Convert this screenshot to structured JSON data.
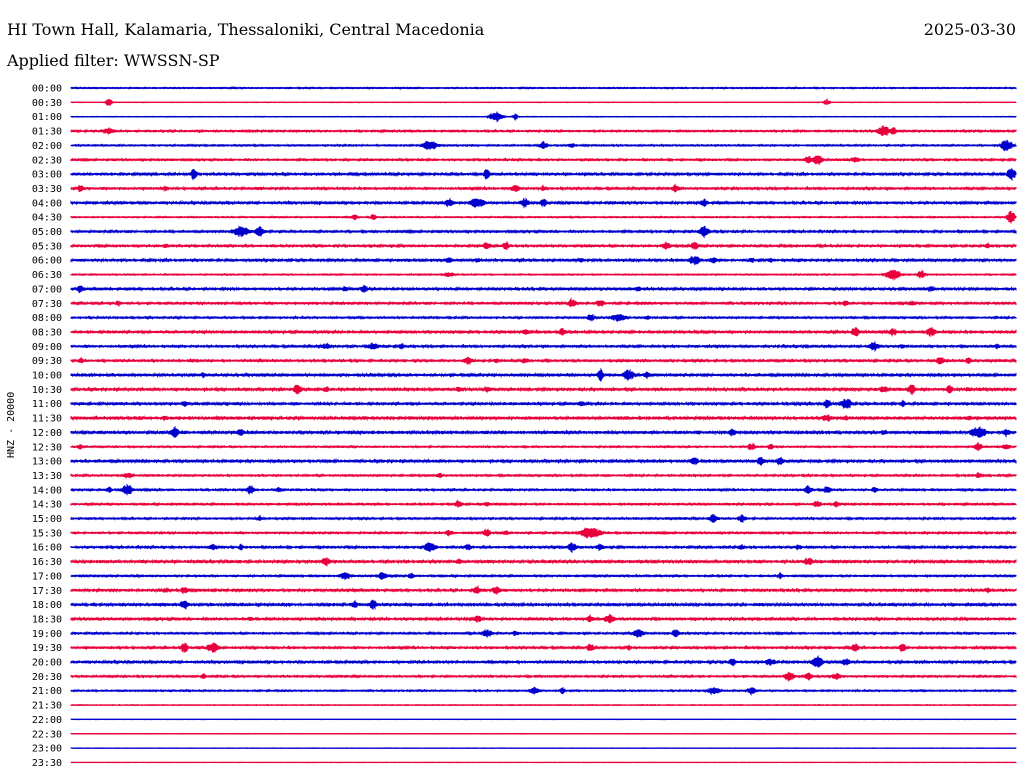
{
  "header": {
    "station": "HI Town Hall, Kalamaria, Thessaloniki, Central Macedonia",
    "date": "2025-03-30",
    "filter": "Applied filter: WWSSN-SP"
  },
  "chart_data": {
    "type": "line",
    "ylabel": "HNZ - 20000",
    "colors": [
      "#0000cc",
      "#e8003c"
    ],
    "row_labels": [
      "00:00",
      "00:30",
      "01:00",
      "01:30",
      "02:00",
      "02:30",
      "03:00",
      "03:30",
      "04:00",
      "04:30",
      "05:00",
      "05:30",
      "06:00",
      "06:30",
      "07:00",
      "07:30",
      "08:00",
      "08:30",
      "09:00",
      "09:30",
      "10:00",
      "10:30",
      "11:00",
      "11:30",
      "12:00",
      "12:30",
      "13:00",
      "13:30",
      "14:00",
      "14:30",
      "15:00",
      "15:30",
      "16:00",
      "16:30",
      "17:00",
      "17:30",
      "18:00",
      "18:30",
      "19:00",
      "19:30",
      "20:00",
      "20:30",
      "21:00",
      "21:30",
      "22:00",
      "22:30",
      "23:00",
      "23:30"
    ],
    "noise": [
      0.5,
      0.2,
      0.25,
      0.7,
      0.6,
      0.7,
      0.9,
      0.8,
      0.9,
      0.5,
      0.8,
      0.8,
      0.9,
      0.5,
      0.9,
      0.8,
      0.7,
      0.9,
      0.8,
      0.8,
      1.0,
      1.0,
      0.9,
      1.1,
      1.1,
      0.6,
      1.0,
      0.7,
      0.7,
      0.7,
      0.7,
      0.7,
      0.8,
      1.0,
      0.7,
      0.9,
      1.0,
      0.9,
      0.7,
      0.8,
      0.9,
      0.7,
      0.6,
      0.3,
      0.15,
      0.2,
      0.15,
      0.15
    ],
    "events": [
      [],
      [
        [
          0.04,
          4,
          3
        ],
        [
          0.8,
          3,
          3
        ]
      ],
      [
        [
          0.45,
          6,
          6
        ],
        [
          0.47,
          3,
          3
        ]
      ],
      [
        [
          0.04,
          3,
          6
        ],
        [
          0.86,
          6,
          6
        ],
        [
          0.87,
          4,
          4
        ]
      ],
      [
        [
          0.38,
          5,
          8
        ],
        [
          0.5,
          4,
          4
        ],
        [
          0.53,
          3,
          3
        ],
        [
          0.99,
          6,
          6
        ]
      ],
      [
        [
          0.78,
          4,
          4
        ],
        [
          0.79,
          6,
          5
        ],
        [
          0.83,
          4,
          4
        ]
      ],
      [
        [
          0.13,
          7,
          3
        ],
        [
          0.44,
          7,
          3
        ],
        [
          0.995,
          7,
          4
        ]
      ],
      [
        [
          0.01,
          4,
          4
        ],
        [
          0.1,
          3,
          3
        ],
        [
          0.47,
          4,
          5
        ],
        [
          0.5,
          3,
          3
        ],
        [
          0.64,
          4,
          4
        ]
      ],
      [
        [
          0.4,
          4,
          5
        ],
        [
          0.43,
          5,
          8
        ],
        [
          0.48,
          5,
          5
        ],
        [
          0.5,
          4,
          4
        ],
        [
          0.67,
          4,
          4
        ]
      ],
      [
        [
          0.3,
          3,
          3
        ],
        [
          0.32,
          3,
          3
        ],
        [
          0.995,
          7,
          4
        ]
      ],
      [
        [
          0.18,
          6,
          8
        ],
        [
          0.2,
          5,
          5
        ],
        [
          0.67,
          6,
          5
        ]
      ],
      [
        [
          0.1,
          3,
          3
        ],
        [
          0.44,
          4,
          4
        ],
        [
          0.46,
          5,
          3
        ],
        [
          0.63,
          4,
          5
        ],
        [
          0.66,
          4,
          4
        ],
        [
          0.97,
          3,
          3
        ]
      ],
      [
        [
          0.4,
          4,
          3
        ],
        [
          0.43,
          3,
          3
        ],
        [
          0.54,
          3,
          3
        ],
        [
          0.66,
          5,
          6
        ],
        [
          0.68,
          4,
          4
        ],
        [
          0.72,
          3,
          3
        ],
        [
          0.74,
          3,
          3
        ]
      ],
      [
        [
          0.4,
          3,
          5
        ],
        [
          0.87,
          5,
          8
        ],
        [
          0.9,
          4,
          4
        ]
      ],
      [
        [
          0.01,
          4,
          4
        ],
        [
          0.29,
          3,
          3
        ],
        [
          0.31,
          4,
          4
        ],
        [
          0.6,
          3,
          3
        ],
        [
          0.91,
          3,
          4
        ]
      ],
      [
        [
          0.05,
          3,
          3
        ],
        [
          0.53,
          5,
          4
        ],
        [
          0.56,
          4,
          4
        ],
        [
          0.82,
          3,
          3
        ],
        [
          0.89,
          3,
          3
        ]
      ],
      [
        [
          0.55,
          4,
          4
        ],
        [
          0.58,
          4,
          8
        ],
        [
          0.61,
          3,
          3
        ]
      ],
      [
        [
          0.48,
          3,
          5
        ],
        [
          0.52,
          4,
          4
        ],
        [
          0.83,
          5,
          4
        ],
        [
          0.87,
          4,
          4
        ],
        [
          0.91,
          5,
          5
        ]
      ],
      [
        [
          0.27,
          3,
          6
        ],
        [
          0.32,
          4,
          5
        ],
        [
          0.35,
          3,
          3
        ],
        [
          0.85,
          5,
          5
        ],
        [
          0.88,
          3,
          3
        ],
        [
          0.98,
          3,
          3
        ]
      ],
      [
        [
          0.01,
          3,
          3
        ],
        [
          0.42,
          4,
          5
        ],
        [
          0.45,
          3,
          3
        ],
        [
          0.48,
          3,
          3
        ],
        [
          0.92,
          4,
          4
        ],
        [
          0.95,
          3,
          3
        ]
      ],
      [
        [
          0.14,
          3,
          3
        ],
        [
          0.56,
          7,
          3
        ],
        [
          0.59,
          6,
          6
        ],
        [
          0.61,
          4,
          4
        ]
      ],
      [
        [
          0.24,
          6,
          4
        ],
        [
          0.27,
          4,
          3
        ],
        [
          0.41,
          3,
          3
        ],
        [
          0.44,
          3,
          4
        ],
        [
          0.86,
          4,
          4
        ],
        [
          0.89,
          5,
          5
        ],
        [
          0.93,
          4,
          4
        ],
        [
          0.95,
          3,
          3
        ]
      ],
      [
        [
          0.12,
          4,
          3
        ],
        [
          0.54,
          3,
          3
        ],
        [
          0.8,
          5,
          4
        ],
        [
          0.82,
          6,
          6
        ],
        [
          0.88,
          4,
          3
        ]
      ],
      [
        [
          0.1,
          3,
          3
        ],
        [
          0.8,
          4,
          5
        ],
        [
          0.82,
          3,
          3
        ],
        [
          0.95,
          3,
          3
        ]
      ],
      [
        [
          0.11,
          6,
          4
        ],
        [
          0.18,
          4,
          4
        ],
        [
          0.7,
          4,
          4
        ],
        [
          0.86,
          3,
          4
        ],
        [
          0.96,
          6,
          8
        ],
        [
          0.99,
          4,
          4
        ]
      ],
      [
        [
          0.01,
          3,
          3
        ],
        [
          0.72,
          4,
          4
        ],
        [
          0.74,
          3,
          3
        ],
        [
          0.96,
          4,
          4
        ],
        [
          0.99,
          4,
          4
        ]
      ],
      [
        [
          0.66,
          4,
          4
        ],
        [
          0.73,
          4,
          4
        ],
        [
          0.75,
          4,
          4
        ]
      ],
      [
        [
          0.06,
          3,
          5
        ],
        [
          0.39,
          3,
          3
        ],
        [
          0.96,
          3,
          3
        ]
      ],
      [
        [
          0.04,
          3,
          3
        ],
        [
          0.06,
          6,
          5
        ],
        [
          0.19,
          5,
          4
        ],
        [
          0.22,
          3,
          3
        ],
        [
          0.78,
          5,
          4
        ],
        [
          0.8,
          4,
          4
        ],
        [
          0.85,
          3,
          3
        ]
      ],
      [
        [
          0.41,
          4,
          4
        ],
        [
          0.44,
          3,
          3
        ],
        [
          0.79,
          4,
          4
        ],
        [
          0.81,
          3,
          3
        ]
      ],
      [
        [
          0.2,
          3,
          3
        ],
        [
          0.68,
          4,
          5
        ],
        [
          0.71,
          4,
          4
        ]
      ],
      [
        [
          0.4,
          3,
          4
        ],
        [
          0.44,
          4,
          4
        ],
        [
          0.46,
          3,
          3
        ],
        [
          0.55,
          6,
          10
        ]
      ],
      [
        [
          0.15,
          4,
          4
        ],
        [
          0.18,
          3,
          3
        ],
        [
          0.38,
          5,
          6
        ],
        [
          0.42,
          4,
          3
        ],
        [
          0.53,
          5,
          5
        ],
        [
          0.56,
          4,
          4
        ],
        [
          0.71,
          3,
          3
        ],
        [
          0.77,
          3,
          3
        ]
      ],
      [
        [
          0.27,
          5,
          4
        ],
        [
          0.41,
          3,
          3
        ],
        [
          0.78,
          4,
          5
        ]
      ],
      [
        [
          0.29,
          4,
          6
        ],
        [
          0.33,
          4,
          4
        ],
        [
          0.36,
          3,
          3
        ],
        [
          0.75,
          3,
          3
        ]
      ],
      [
        [
          0.1,
          3,
          3
        ],
        [
          0.12,
          4,
          4
        ],
        [
          0.43,
          4,
          4
        ],
        [
          0.45,
          5,
          4
        ],
        [
          0.97,
          3,
          3
        ]
      ],
      [
        [
          0.12,
          5,
          4
        ],
        [
          0.3,
          4,
          4
        ],
        [
          0.32,
          5,
          4
        ]
      ],
      [
        [
          0.19,
          3,
          3
        ],
        [
          0.43,
          4,
          4
        ],
        [
          0.55,
          4,
          4
        ],
        [
          0.57,
          5,
          5
        ]
      ],
      [
        [
          0.44,
          4,
          5
        ],
        [
          0.47,
          3,
          3
        ],
        [
          0.6,
          4,
          6
        ],
        [
          0.64,
          4,
          4
        ]
      ],
      [
        [
          0.12,
          5,
          4
        ],
        [
          0.15,
          5,
          6
        ],
        [
          0.55,
          4,
          4
        ],
        [
          0.59,
          3,
          3
        ],
        [
          0.83,
          4,
          4
        ],
        [
          0.88,
          4,
          4
        ]
      ],
      [
        [
          0.7,
          4,
          4
        ],
        [
          0.74,
          4,
          5
        ],
        [
          0.79,
          6,
          6
        ],
        [
          0.82,
          4,
          4
        ]
      ],
      [
        [
          0.14,
          3,
          3
        ],
        [
          0.76,
          5,
          5
        ],
        [
          0.78,
          4,
          4
        ],
        [
          0.81,
          4,
          4
        ]
      ],
      [
        [
          0.49,
          4,
          5
        ],
        [
          0.52,
          3,
          3
        ],
        [
          0.68,
          4,
          6
        ],
        [
          0.72,
          4,
          4
        ]
      ],
      [],
      [],
      [],
      [],
      []
    ]
  }
}
